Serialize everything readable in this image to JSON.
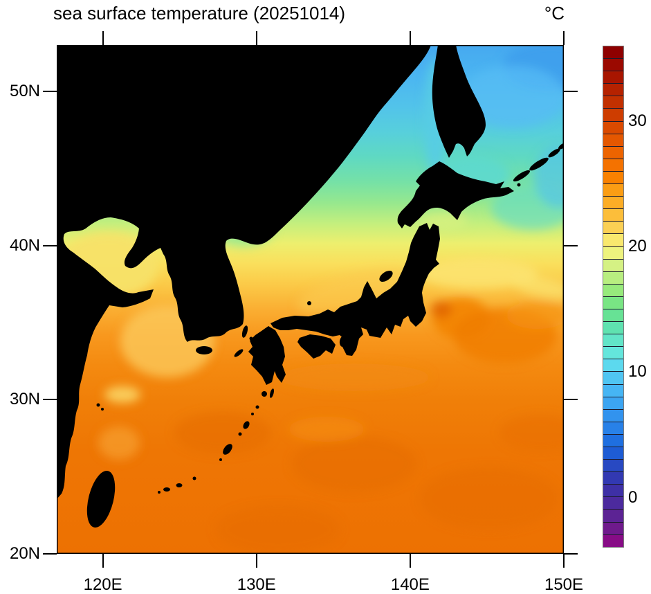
{
  "title": {
    "text": "sea surface temperature (20251014)",
    "units_label": "°C"
  },
  "axes": {
    "x": {
      "range_deg_e": [
        117,
        150
      ],
      "ticks": [
        {
          "value": 120,
          "label": "120E"
        },
        {
          "value": 130,
          "label": "130E"
        },
        {
          "value": 140,
          "label": "140E"
        },
        {
          "value": 150,
          "label": "150E"
        }
      ]
    },
    "y": {
      "range_deg_n": [
        20,
        53
      ],
      "ticks": [
        {
          "value": 50,
          "label": "50N"
        },
        {
          "value": 40,
          "label": "40N"
        },
        {
          "value": 30,
          "label": "30N"
        },
        {
          "value": 20,
          "label": "20N"
        }
      ]
    }
  },
  "colorbar": {
    "min_c": -4,
    "max_c": 36,
    "interval_c": 1,
    "tick_labels": [
      {
        "value": 30,
        "label": "30"
      },
      {
        "value": 20,
        "label": "20"
      },
      {
        "value": 10,
        "label": "10"
      },
      {
        "value": 0,
        "label": "0"
      }
    ],
    "colors_top_to_bottom": [
      "#8E0000",
      "#9B0900",
      "#A81500",
      "#B52200",
      "#C23000",
      "#CE3D00",
      "#DA4A00",
      "#E45700",
      "#ED6400",
      "#F47200",
      "#F98100",
      "#FB9D14",
      "#FCAD26",
      "#FCBE3A",
      "#FBD054",
      "#F9E86E",
      "#EEF37E",
      "#D5F184",
      "#B8EE80",
      "#97EA7C",
      "#79E584",
      "#67E295",
      "#5FE2B0",
      "#62E5C8",
      "#64E6DC",
      "#5CD9EE",
      "#50C5F2",
      "#46B5F4",
      "#3CA5F2",
      "#3293EE",
      "#2881E8",
      "#1F6FE0",
      "#1E5CD4",
      "#2849C2",
      "#3239B2",
      "#3E30A6",
      "#4C2A9E",
      "#5C2394",
      "#6F1A8C",
      "#870C86"
    ]
  },
  "map_colors": {
    "land": "#000000",
    "frame": "#000000",
    "background": "#ffffff"
  },
  "chart_data": {
    "type": "heatmap",
    "title": "sea surface temperature (20251014)",
    "date": "20251014",
    "units": "°C",
    "xlabel_ticks": [
      "120E",
      "130E",
      "140E",
      "150E"
    ],
    "ylabel_ticks": [
      "20N",
      "30N",
      "40N",
      "50N"
    ],
    "lon_range_e": [
      117,
      150
    ],
    "lat_range_n": [
      20,
      53
    ],
    "colorbar_range_c": [
      -4,
      36
    ],
    "colorbar_interval_c": 1,
    "colorbar_labeled_values": [
      0,
      10,
      20,
      30
    ],
    "legend_position": "right",
    "grid": false,
    "land_regions": [
      "Siberia / Russian Far East",
      "Northeast China & Bohai coast",
      "Korean Peninsula",
      "Shandong Peninsula",
      "China east coast",
      "Taiwan",
      "Sakhalin",
      "Hokkaido",
      "Honshu",
      "Shikoku",
      "Kyushu",
      "Kuril Islands",
      "Sado",
      "Tsushima",
      "Jeju",
      "Ryukyu Islands"
    ],
    "sample_points": [
      {
        "location": "Sea of Okhotsk (NE corner)",
        "lon_e": 148,
        "lat_n": 51,
        "sst_c": 8
      },
      {
        "location": "Strait of Tartary",
        "lon_e": 141,
        "lat_n": 49,
        "sst_c": 11
      },
      {
        "location": "East of Hokkaido",
        "lon_e": 146,
        "lat_n": 44,
        "sst_c": 13
      },
      {
        "location": "Northern Sea of Japan",
        "lon_e": 135,
        "lat_n": 42,
        "sst_c": 16
      },
      {
        "location": "Central Sea of Japan",
        "lon_e": 132,
        "lat_n": 40,
        "sst_c": 20
      },
      {
        "location": "Bohai Sea",
        "lon_e": 120,
        "lat_n": 39,
        "sst_c": 20
      },
      {
        "location": "Yellow Sea",
        "lon_e": 124,
        "lat_n": 34,
        "sst_c": 23
      },
      {
        "location": "Off Sanriku coast",
        "lon_e": 143,
        "lat_n": 39,
        "sst_c": 22
      },
      {
        "location": "Kuroshio extension eddy",
        "lon_e": 142,
        "lat_n": 36,
        "sst_c": 27
      },
      {
        "location": "South of Honshu",
        "lon_e": 135,
        "lat_n": 30,
        "sst_c": 28
      },
      {
        "location": "East China Sea",
        "lon_e": 125,
        "lat_n": 25,
        "sst_c": 29
      },
      {
        "location": "Philippine Sea (SE corner)",
        "lon_e": 148,
        "lat_n": 22,
        "sst_c": 29
      }
    ]
  }
}
